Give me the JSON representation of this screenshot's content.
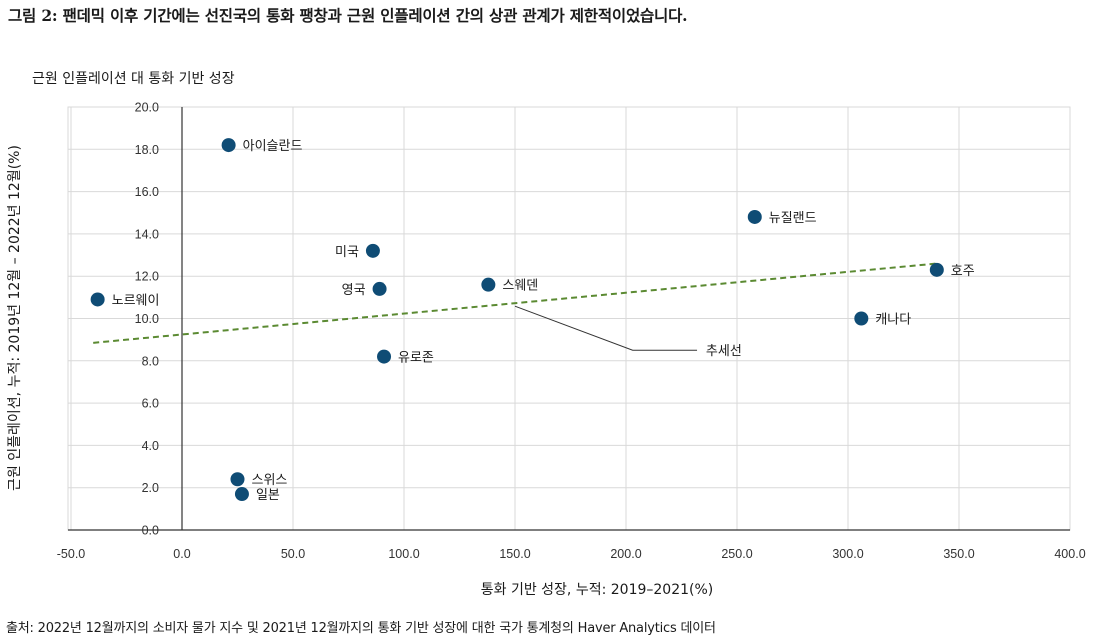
{
  "figure_title": "그림 2: 팬데믹 이후 기간에는 선진국의 통화 팽창과 근원 인플레이션 간의 상관 관계가 제한적이었습니다.",
  "source_note": "출처: 2022년 12월까지의 소비자 물가 지수 및 2021년 12월까지의 통화 기반 성장에 대한 국가 통계청의 Haver Analytics 데이터",
  "colors": {
    "point": "#0f4c75",
    "trend": "#5b8a32",
    "grid": "#d9d9d9",
    "axis": "#333333"
  },
  "chart_data": {
    "type": "scatter",
    "title": "근원 인플레이션 대 통화 기반 성장",
    "xlabel": "통화 기반 성장, 누적: 2019–2021(%)",
    "ylabel": "근원 인플레이션, 누적: 2019년 12월 – 2022년 12월(%)",
    "xlim": [
      -50,
      400
    ],
    "ylim": [
      0,
      20
    ],
    "x_ticks": [
      -50,
      0,
      50,
      100,
      150,
      200,
      250,
      300,
      350,
      400
    ],
    "x_tick_labels": [
      "-50.0",
      "0.0",
      "50.0",
      "100.0",
      "150.0",
      "200.0",
      "250.0",
      "300.0",
      "350.0",
      "400.0"
    ],
    "y_ticks": [
      0,
      2,
      4,
      6,
      8,
      10,
      12,
      14,
      16,
      18,
      20
    ],
    "y_tick_labels": [
      "0.0",
      "2.0",
      "4.0",
      "6.0",
      "8.0",
      "10.0",
      "12.0",
      "14.0",
      "16.0",
      "18.0",
      "20.0"
    ],
    "grid": true,
    "points": [
      {
        "label": "아이슬란드",
        "x": 21,
        "y": 18.2,
        "label_side": "right"
      },
      {
        "label": "미국",
        "x": 86,
        "y": 13.2,
        "label_side": "left"
      },
      {
        "label": "영국",
        "x": 89,
        "y": 11.4,
        "label_side": "left"
      },
      {
        "label": "유로존",
        "x": 91,
        "y": 8.2,
        "label_side": "right"
      },
      {
        "label": "노르웨이",
        "x": -38,
        "y": 10.9,
        "label_side": "right"
      },
      {
        "label": "스웨덴",
        "x": 138,
        "y": 11.6,
        "label_side": "right"
      },
      {
        "label": "뉴질랜드",
        "x": 258,
        "y": 14.8,
        "label_side": "right"
      },
      {
        "label": "호주",
        "x": 340,
        "y": 12.3,
        "label_side": "right"
      },
      {
        "label": "캐나다",
        "x": 306,
        "y": 10.0,
        "label_side": "right"
      },
      {
        "label": "스위스",
        "x": 25,
        "y": 2.4,
        "label_side": "right"
      },
      {
        "label": "일본",
        "x": 27,
        "y": 1.7,
        "label_side": "right"
      }
    ],
    "trendline": {
      "label": "추세선",
      "x": [
        -40,
        340
      ],
      "y": [
        8.85,
        12.6
      ]
    }
  }
}
